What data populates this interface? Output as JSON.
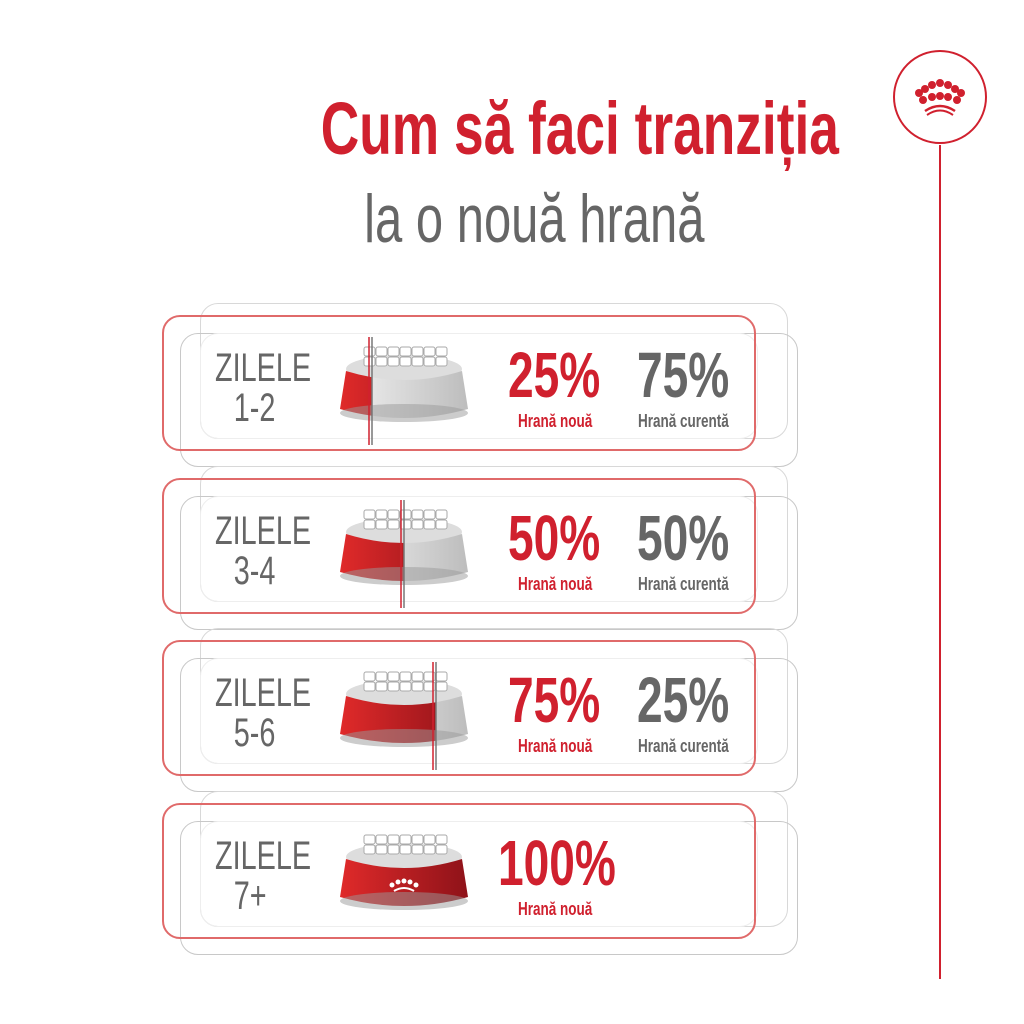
{
  "header": {
    "title": "Cum să faci tranziția",
    "subtitle": "la o nouă hrană"
  },
  "brand": {
    "logo": "royal-canin-crown-icon",
    "color": "#d0202e"
  },
  "colors": {
    "accent": "#d0202e",
    "text_gray": "#666666"
  },
  "rows": [
    {
      "days": "ZILELE",
      "range": "1-2",
      "new_pct": "25%",
      "new_label": "Hrană nouă",
      "cur_pct": "75%",
      "cur_label": "Hrană curentă",
      "new_fraction": 0.25
    },
    {
      "days": "ZILELE",
      "range": "3-4",
      "new_pct": "50%",
      "new_label": "Hrană nouă",
      "cur_pct": "50%",
      "cur_label": "Hrană curentă",
      "new_fraction": 0.5
    },
    {
      "days": "ZILELE",
      "range": "5-6",
      "new_pct": "75%",
      "new_label": "Hrană nouă",
      "cur_pct": "25%",
      "cur_label": "Hrană curentă",
      "new_fraction": 0.75
    },
    {
      "days": "ZILELE",
      "range": "7+",
      "new_pct": "100%",
      "new_label": "Hrană nouă",
      "new_fraction": 1.0
    }
  ]
}
